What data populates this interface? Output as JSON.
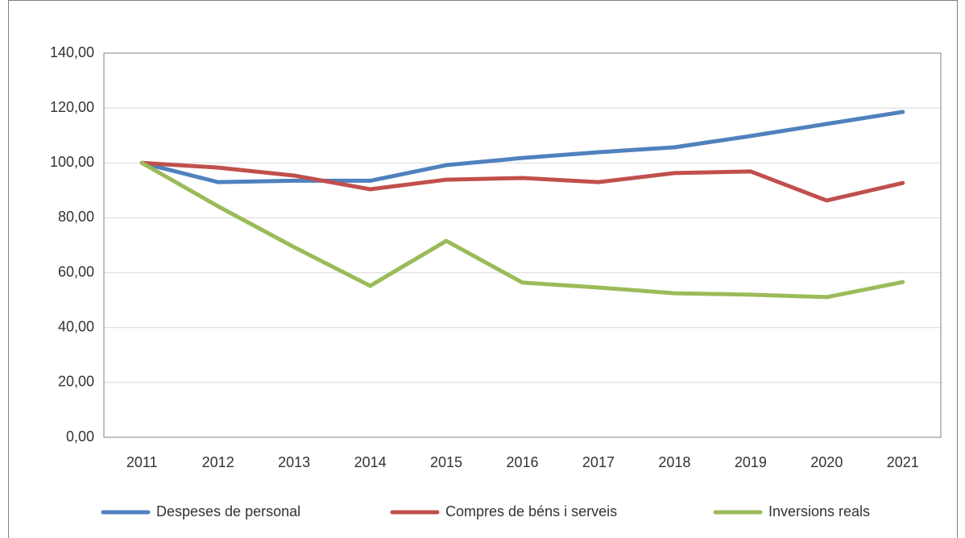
{
  "chart_data": {
    "type": "line",
    "categories": [
      "2011",
      "2012",
      "2013",
      "2014",
      "2015",
      "2016",
      "2017",
      "2018",
      "2019",
      "2020",
      "2021"
    ],
    "series": [
      {
        "name": "Despeses de personal",
        "color": "#4f81bd",
        "values": [
          100,
          93.0,
          93.5,
          93.5,
          99.2,
          101.8,
          103.9,
          105.7,
          109.8,
          114.2,
          118.6
        ]
      },
      {
        "name": "Compres de béns i serveis",
        "color": "#c0504d",
        "values": [
          100,
          98.3,
          95.4,
          90.4,
          93.9,
          94.5,
          93.0,
          96.3,
          96.9,
          86.3,
          92.7
        ]
      },
      {
        "name": "Inversions reals",
        "color": "#9bbb59",
        "values": [
          100,
          84.2,
          69.3,
          55.2,
          71.6,
          56.4,
          54.6,
          52.5,
          52.0,
          51.1,
          56.6
        ]
      }
    ],
    "ylim": [
      0,
      140
    ],
    "yticks": [
      {
        "value": 0,
        "label": "0,00"
      },
      {
        "value": 20,
        "label": "20,00"
      },
      {
        "value": 40,
        "label": "40,00"
      },
      {
        "value": 60,
        "label": "60,00"
      },
      {
        "value": 80,
        "label": "80,00"
      },
      {
        "value": 100,
        "label": "100,00"
      },
      {
        "value": 120,
        "label": "120,00"
      },
      {
        "value": 140,
        "label": "140,00"
      }
    ],
    "grid": true,
    "legend": "bottom"
  }
}
